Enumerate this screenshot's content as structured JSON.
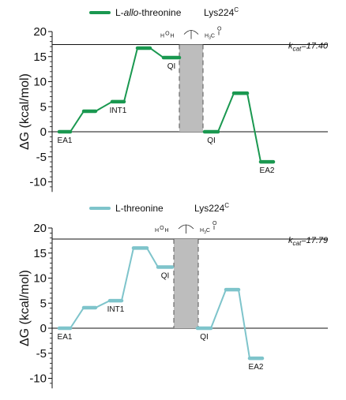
{
  "chart_data": [
    {
      "type": "line",
      "ylabel": "ΔG (kcal/mol)",
      "ylim": [
        -12,
        20
      ],
      "yticks": [
        -10,
        -5,
        0,
        5,
        10,
        15,
        20
      ],
      "reference_line": 17.4,
      "barrier_band": true,
      "legend": {
        "placement": "top-center",
        "name_prefix": "L-",
        "name_italic": "allo",
        "name_suffix": "-threonine",
        "extra": "Lys224",
        "extra_sup": "C"
      },
      "annotation": {
        "k_label": "k",
        "k_sub": "cat",
        "value_text": "=17.40"
      },
      "molecules": {
        "water_h_left": "H",
        "water_o": "O",
        "water_h_right": "H",
        "ald_h3c": "H",
        "ald_h3c_sub": "3",
        "ald_c": "C",
        "ald_o": "O"
      },
      "color": "#1a9850",
      "series": [
        {
          "values": [
            {
              "x": 0,
              "y": 0,
              "label": "EA1"
            },
            {
              "x": 1,
              "y": 4.1,
              "label": ""
            },
            {
              "x": 2,
              "y": 6.0,
              "label": "INT1"
            },
            {
              "x": 3,
              "y": 16.7,
              "label": ""
            },
            {
              "x": 4,
              "y": 14.8,
              "label": "QI"
            },
            {
              "x": 5.8,
              "y": 0,
              "label": "QI"
            },
            {
              "x": 6.8,
              "y": 7.7,
              "label": ""
            },
            {
              "x": 8.2,
              "y": -6.0,
              "label": "EA2"
            }
          ]
        }
      ]
    },
    {
      "type": "line",
      "ylabel": "ΔG (kcal/mol)",
      "ylim": [
        -12,
        20
      ],
      "yticks": [
        -10,
        -5,
        0,
        5,
        10,
        15,
        20
      ],
      "reference_line": 17.79,
      "barrier_band": true,
      "legend": {
        "placement": "top-center",
        "name_prefix": "L-threonine",
        "name_italic": "",
        "name_suffix": "",
        "extra": "Lys224",
        "extra_sup": "C"
      },
      "annotation": {
        "k_label": "k",
        "k_sub": "cat",
        "value_text": "=17.79"
      },
      "molecules": {
        "water_h_left": "H",
        "water_o": "O",
        "water_h_right": "H",
        "ald_h3c": "H",
        "ald_h3c_sub": "3",
        "ald_c": "C",
        "ald_o": "O"
      },
      "color": "#7ec4cb",
      "series": [
        {
          "values": [
            {
              "x": 0,
              "y": 0,
              "label": "EA1"
            },
            {
              "x": 1,
              "y": 4.1,
              "label": ""
            },
            {
              "x": 2,
              "y": 5.5,
              "label": "INT1"
            },
            {
              "x": 3,
              "y": 16.0,
              "label": ""
            },
            {
              "x": 4,
              "y": 12.2,
              "label": "QI"
            },
            {
              "x": 5.8,
              "y": 0,
              "label": "QI"
            },
            {
              "x": 6.8,
              "y": 7.7,
              "label": ""
            },
            {
              "x": 8.2,
              "y": -6.0,
              "label": "EA2"
            }
          ]
        }
      ]
    }
  ]
}
